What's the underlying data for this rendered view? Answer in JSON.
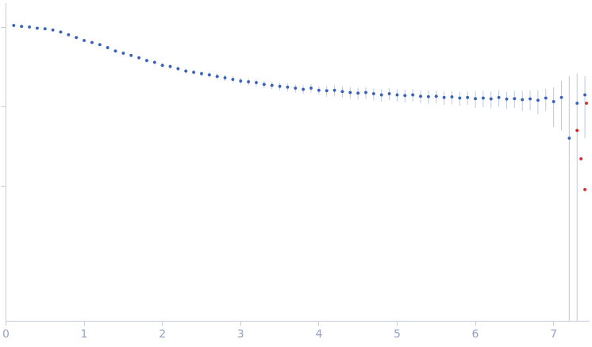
{
  "chart_data": {
    "type": "scatter",
    "log": "y",
    "grid": false,
    "tick_labels": "x",
    "xlim": [
      0,
      7.45
    ],
    "xticks": [
      0,
      1,
      2,
      3,
      4,
      5,
      6,
      7
    ],
    "ylim": [
      0.0002,
      2
    ],
    "yticks": [
      0.01,
      0.1,
      1
    ],
    "series": [
      {
        "color": "#3a63b8",
        "marker": "circle",
        "x": [
          0.1,
          0.2,
          0.3,
          0.4,
          0.5,
          0.6,
          0.7,
          0.8,
          0.9,
          1.0,
          1.1,
          1.2,
          1.3,
          1.4,
          1.5,
          1.6,
          1.7,
          1.8,
          1.9,
          2.0,
          2.1,
          2.2,
          2.3,
          2.4,
          2.5,
          2.6,
          2.7,
          2.8,
          2.9,
          3.0,
          3.1,
          3.2,
          3.3,
          3.4,
          3.5,
          3.6,
          3.7,
          3.8,
          3.9,
          4.0,
          4.1,
          4.2,
          4.3,
          4.4,
          4.5,
          4.6,
          4.7,
          4.8,
          4.9,
          5.0,
          5.1,
          5.2,
          5.3,
          5.4,
          5.5,
          5.6,
          5.7,
          5.8,
          5.9,
          6.0,
          6.1,
          6.2,
          6.3,
          6.4,
          6.5,
          6.6,
          6.7,
          6.8,
          6.9,
          7.0,
          7.1,
          7.2,
          7.3,
          7.4
        ],
        "values": [
          1.05,
          1.02,
          1.0,
          0.97,
          0.95,
          0.92,
          0.87,
          0.8,
          0.74,
          0.68,
          0.64,
          0.6,
          0.55,
          0.5,
          0.47,
          0.44,
          0.41,
          0.38,
          0.36,
          0.33,
          0.32,
          0.3,
          0.28,
          0.27,
          0.26,
          0.25,
          0.24,
          0.23,
          0.22,
          0.21,
          0.205,
          0.2,
          0.19,
          0.185,
          0.18,
          0.175,
          0.17,
          0.165,
          0.17,
          0.16,
          0.158,
          0.16,
          0.155,
          0.15,
          0.148,
          0.15,
          0.145,
          0.14,
          0.145,
          0.14,
          0.138,
          0.14,
          0.135,
          0.133,
          0.135,
          0.13,
          0.132,
          0.128,
          0.13,
          0.126,
          0.128,
          0.125,
          0.13,
          0.124,
          0.126,
          0.122,
          0.125,
          0.12,
          0.128,
          0.115,
          0.13,
          0.04,
          0.11,
          0.14
        ],
        "errors": [
          0.02,
          0.02,
          0.02,
          0.02,
          0.02,
          0.02,
          0.02,
          0.02,
          0.02,
          0.02,
          0.02,
          0.02,
          0.02,
          0.02,
          0.02,
          0.02,
          0.02,
          0.02,
          0.02,
          0.02,
          0.02,
          0.02,
          0.02,
          0.02,
          0.02,
          0.02,
          0.02,
          0.02,
          0.02,
          0.02,
          0.02,
          0.02,
          0.02,
          0.02,
          0.02,
          0.02,
          0.02,
          0.02,
          0.02,
          0.02,
          0.025,
          0.025,
          0.025,
          0.025,
          0.025,
          0.025,
          0.025,
          0.025,
          0.025,
          0.025,
          0.025,
          0.025,
          0.025,
          0.025,
          0.025,
          0.025,
          0.025,
          0.025,
          0.025,
          0.03,
          0.03,
          0.03,
          0.03,
          0.03,
          0.03,
          0.035,
          0.035,
          0.04,
          0.04,
          0.06,
          0.08,
          0.2,
          0.15,
          0.1
        ]
      },
      {
        "color": "#d62728",
        "marker": "circle",
        "x": [
          7.3,
          7.35,
          7.4,
          7.42
        ],
        "values": [
          0.05,
          0.022,
          0.009,
          0.11
        ]
      }
    ]
  }
}
